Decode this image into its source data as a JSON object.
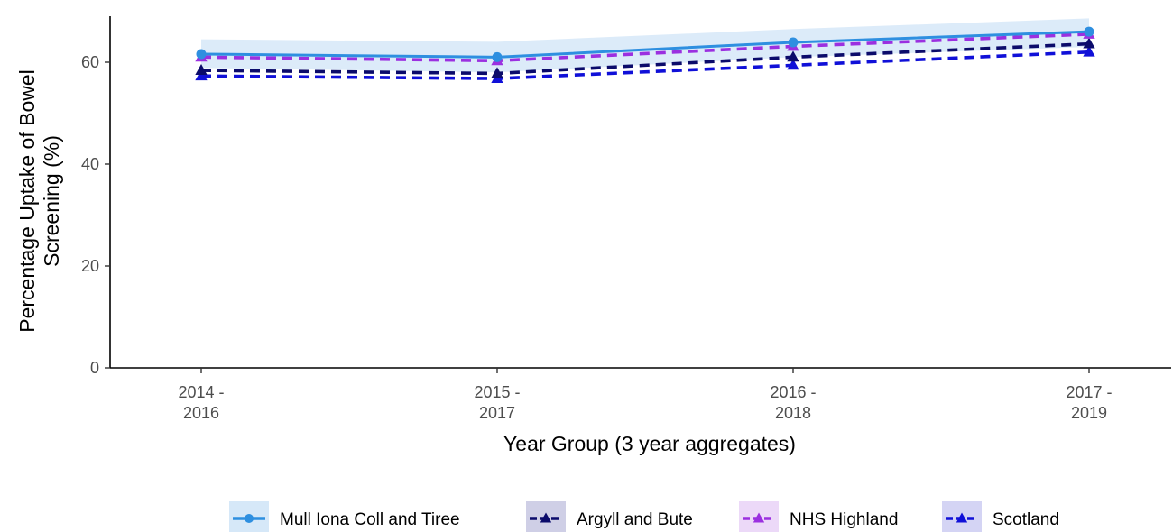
{
  "chart_data": {
    "type": "line",
    "xlabel": "Year Group (3 year aggregates)",
    "ylabel_lines": [
      "Percentage Uptake of Bowel",
      "Screening (%)"
    ],
    "categories": [
      [
        "2014 -",
        "2016"
      ],
      [
        "2015 -",
        "2017"
      ],
      [
        "2016 -",
        "2018"
      ],
      [
        "2017 -",
        "2019"
      ]
    ],
    "ylim": [
      0,
      70
    ],
    "yticks": [
      0,
      20,
      40,
      60
    ],
    "grid": false,
    "legend_position": "bottom",
    "series": [
      {
        "name": "Mull Iona Coll and Tiree",
        "values": [
          61.6,
          61.0,
          63.9,
          66.0
        ],
        "ci_lower": [
          58.9,
          58.0,
          61.0,
          63.0
        ],
        "ci_upper": [
          64.5,
          64.0,
          66.5,
          68.6
        ],
        "color": "#2e8fe0",
        "band_color": "#d6e8f8",
        "dashed": false,
        "marker": "circle"
      },
      {
        "name": "Argyll and Bute",
        "values": [
          58.4,
          57.8,
          61.0,
          63.6
        ],
        "color": "#0b0b6b",
        "band_color": "#cfcfe6",
        "dashed": true,
        "marker": "triangle"
      },
      {
        "name": "NHS Highland",
        "values": [
          61.0,
          60.3,
          63.1,
          65.5
        ],
        "color": "#9b30e0",
        "band_color": "#ecd9f8",
        "dashed": true,
        "marker": "triangle"
      },
      {
        "name": "Scotland",
        "values": [
          57.3,
          56.8,
          59.4,
          62.0
        ],
        "color": "#1010d8",
        "band_color": "#d4d4f4",
        "dashed": true,
        "marker": "triangle"
      }
    ]
  }
}
